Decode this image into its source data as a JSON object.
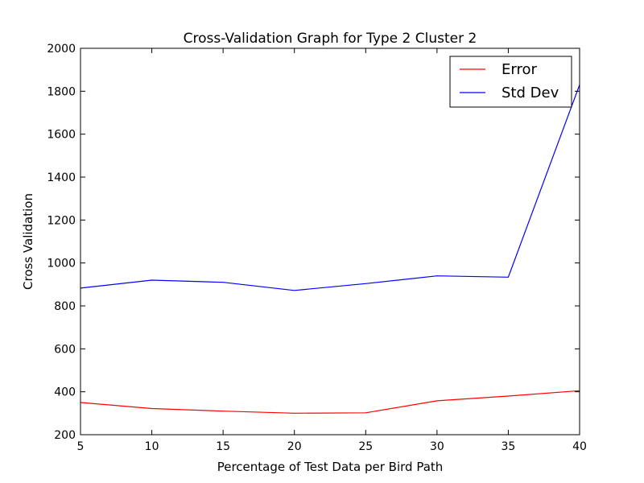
{
  "chart_data": {
    "type": "line",
    "title": "Cross-Validation Graph for Type 2 Cluster 2",
    "xlabel": "Percentage of Test Data per Bird Path",
    "ylabel": "Cross Validation",
    "x": [
      5,
      10,
      15,
      20,
      25,
      30,
      35,
      40
    ],
    "xlim": [
      5,
      40
    ],
    "ylim": [
      200,
      2000
    ],
    "xticks": [
      5,
      10,
      15,
      20,
      25,
      30,
      35,
      40
    ],
    "yticks": [
      200,
      400,
      600,
      800,
      1000,
      1200,
      1400,
      1600,
      1800,
      2000
    ],
    "series": [
      {
        "name": "Error",
        "color": "#ff0000",
        "values": [
          350,
          322,
          310,
          300,
          302,
          358,
          380,
          405
        ]
      },
      {
        "name": "Std Dev",
        "color": "#0000ff",
        "values": [
          883,
          920,
          910,
          872,
          904,
          940,
          934,
          1830
        ]
      }
    ],
    "legend": "top-right",
    "grid": false
  }
}
